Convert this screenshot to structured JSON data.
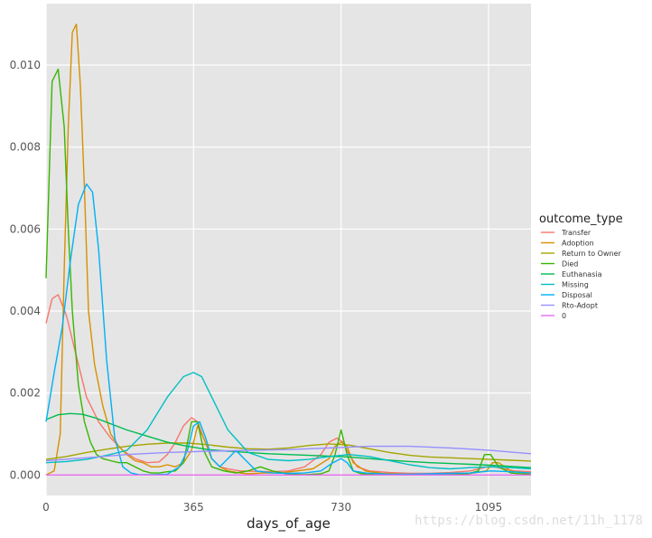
{
  "chart_data": {
    "type": "line",
    "xlabel": "days_of_age",
    "ylabel": "",
    "xlim": [
      0,
      1200
    ],
    "ylim": [
      -0.0005,
      0.0115
    ],
    "x_ticks": [
      0,
      365,
      730,
      1095
    ],
    "y_ticks": [
      0.0,
      0.002,
      0.004,
      0.006,
      0.008,
      0.01
    ],
    "y_tick_labels": [
      "0.000",
      "0.002",
      "0.004",
      "0.006",
      "0.008",
      "0.010"
    ],
    "x_tick_labels": [
      "0",
      "365",
      "730",
      "1095"
    ],
    "grid": true,
    "legend": {
      "title": "outcome_type",
      "placement": "right"
    },
    "series": [
      {
        "name": "Transfer",
        "color": "#F8766D",
        "x": [
          0,
          15,
          30,
          50,
          75,
          100,
          130,
          160,
          190,
          220,
          250,
          280,
          300,
          320,
          340,
          360,
          375,
          390,
          410,
          430,
          450,
          480,
          520,
          560,
          600,
          640,
          680,
          700,
          720,
          735,
          750,
          770,
          800,
          850,
          900,
          950,
          1000,
          1050,
          1090,
          1110,
          1130,
          1160,
          1200
        ],
        "y": [
          0.0037,
          0.0043,
          0.0044,
          0.0039,
          0.0029,
          0.0019,
          0.0013,
          0.0009,
          0.0006,
          0.0004,
          0.0003,
          0.00032,
          0.0005,
          0.0008,
          0.0012,
          0.0014,
          0.0013,
          0.0009,
          0.0004,
          0.0002,
          0.00015,
          0.0001,
          9e-05,
          8e-05,
          0.0001,
          0.0002,
          0.0005,
          0.0008,
          0.0009,
          0.0008,
          0.0005,
          0.0002,
          0.0001,
          6e-05,
          4e-05,
          4e-05,
          6e-05,
          0.0001,
          0.0002,
          0.0002,
          0.00015,
          0.0001,
          8e-05
        ]
      },
      {
        "name": "Adoption",
        "color": "#D89000",
        "x": [
          0,
          20,
          35,
          45,
          55,
          65,
          75,
          85,
          95,
          105,
          120,
          140,
          160,
          180,
          200,
          220,
          240,
          260,
          280,
          300,
          320,
          340,
          360,
          375,
          390,
          410,
          430,
          450,
          480,
          500,
          540,
          580,
          620,
          660,
          700,
          715,
          730,
          745,
          760,
          790,
          830,
          900,
          950,
          1000,
          1050,
          1090,
          1105,
          1120,
          1150,
          1200
        ],
        "y": [
          0.0,
          0.0001,
          0.001,
          0.005,
          0.0085,
          0.0108,
          0.011,
          0.0095,
          0.007,
          0.004,
          0.0027,
          0.0017,
          0.001,
          0.0007,
          0.0005,
          0.00035,
          0.0003,
          0.0002,
          0.0002,
          0.00025,
          0.0002,
          0.0003,
          0.0006,
          0.0012,
          0.0009,
          0.0004,
          0.0002,
          0.0001,
          5e-05,
          3e-05,
          5e-05,
          5e-05,
          0.0001,
          0.00015,
          0.0004,
          0.0007,
          0.0008,
          0.0007,
          0.0003,
          0.0001,
          4e-05,
          2e-05,
          2e-05,
          2e-05,
          4e-05,
          0.0001,
          0.0003,
          0.0003,
          0.0001,
          3e-05
        ]
      },
      {
        "name": "Return to Owner",
        "color": "#A3A500",
        "x": [
          0,
          50,
          100,
          150,
          200,
          250,
          300,
          350,
          400,
          450,
          500,
          550,
          600,
          650,
          700,
          750,
          800,
          850,
          900,
          950,
          1000,
          1050,
          1100,
          1150,
          1200
        ],
        "y": [
          0.00038,
          0.00045,
          0.00055,
          0.00063,
          0.0007,
          0.00075,
          0.00078,
          0.00078,
          0.00074,
          0.00068,
          0.00064,
          0.00063,
          0.00066,
          0.00072,
          0.00076,
          0.00073,
          0.00064,
          0.00055,
          0.00048,
          0.00044,
          0.00042,
          0.0004,
          0.00038,
          0.00036,
          0.00034
        ]
      },
      {
        "name": "Died",
        "color": "#39B600",
        "x": [
          0,
          15,
          30,
          45,
          55,
          65,
          80,
          95,
          110,
          125,
          140,
          160,
          180,
          200,
          220,
          240,
          260,
          280,
          300,
          320,
          340,
          360,
          375,
          390,
          410,
          440,
          470,
          500,
          530,
          560,
          600,
          640,
          680,
          700,
          715,
          730,
          745,
          760,
          780,
          820,
          880,
          950,
          1000,
          1040,
          1070,
          1085,
          1100,
          1120,
          1150,
          1200
        ],
        "y": [
          0.0048,
          0.0096,
          0.0099,
          0.0085,
          0.006,
          0.004,
          0.0022,
          0.0013,
          0.0008,
          0.0005,
          0.0004,
          0.00035,
          0.0003,
          0.0003,
          0.0002,
          0.0001,
          5e-05,
          5e-05,
          8e-05,
          0.0001,
          0.0003,
          0.0013,
          0.0013,
          0.0006,
          0.0002,
          0.0001,
          5e-05,
          0.0001,
          0.0002,
          0.0001,
          2e-05,
          1e-05,
          3e-05,
          0.0001,
          0.0005,
          0.0011,
          0.0005,
          0.0001,
          3e-05,
          1e-05,
          1e-05,
          1e-05,
          1e-05,
          2e-05,
          0.0001,
          0.0005,
          0.0005,
          0.0002,
          5e-05,
          1e-05
        ]
      },
      {
        "name": "Euthanasia",
        "color": "#00BB4E",
        "x": [
          0,
          30,
          60,
          90,
          120,
          160,
          200,
          250,
          300,
          350,
          400,
          450,
          500,
          550,
          600,
          650,
          700,
          750,
          800,
          850,
          900,
          950,
          1000,
          1050,
          1100,
          1150,
          1200
        ],
        "y": [
          0.00135,
          0.00147,
          0.0015,
          0.00148,
          0.0014,
          0.00125,
          0.0011,
          0.00095,
          0.0008,
          0.0007,
          0.00062,
          0.00058,
          0.00055,
          0.00052,
          0.0005,
          0.00048,
          0.00046,
          0.00044,
          0.0004,
          0.00036,
          0.00033,
          0.0003,
          0.00028,
          0.00026,
          0.00024,
          0.00021,
          0.00018
        ]
      },
      {
        "name": "Missing",
        "color": "#00BFC4",
        "x": [
          0,
          50,
          100,
          150,
          200,
          250,
          300,
          340,
          365,
          385,
          410,
          450,
          500,
          550,
          600,
          650,
          700,
          750,
          800,
          850,
          900,
          950,
          1000,
          1050,
          1100,
          1150,
          1200
        ],
        "y": [
          0.0003,
          0.00033,
          0.00038,
          0.00048,
          0.0006,
          0.0011,
          0.0019,
          0.0024,
          0.0025,
          0.0024,
          0.0019,
          0.0011,
          0.00055,
          0.00038,
          0.00035,
          0.00038,
          0.00045,
          0.0005,
          0.00045,
          0.00035,
          0.00025,
          0.00018,
          0.00015,
          0.00018,
          0.0002,
          0.00018,
          0.00015
        ]
      },
      {
        "name": "Disposal",
        "color": "#00B0F6",
        "x": [
          0,
          20,
          40,
          60,
          80,
          100,
          115,
          130,
          150,
          170,
          190,
          210,
          230,
          260,
          300,
          330,
          350,
          365,
          380,
          395,
          410,
          430,
          450,
          470,
          490,
          520,
          560,
          600,
          640,
          680,
          710,
          730,
          745,
          760,
          790,
          850,
          900,
          950,
          1000,
          1050,
          1100,
          1150,
          1200
        ],
        "y": [
          0.0013,
          0.0025,
          0.0036,
          0.0052,
          0.0066,
          0.0071,
          0.0069,
          0.0055,
          0.0028,
          0.0009,
          0.0002,
          5e-05,
          1e-05,
          1e-05,
          2e-05,
          0.0002,
          0.0006,
          0.0012,
          0.0013,
          0.0009,
          0.0004,
          0.0002,
          0.0004,
          0.0006,
          0.0004,
          0.0001,
          5e-05,
          4e-05,
          5e-05,
          0.0001,
          0.0003,
          0.0004,
          0.0003,
          0.0001,
          5e-05,
          2e-05,
          2e-05,
          3e-05,
          4e-05,
          5e-05,
          0.0001,
          8e-05,
          5e-05
        ]
      },
      {
        "name": "Rto-Adopt",
        "color": "#9590FF",
        "x": [
          0,
          100,
          200,
          300,
          400,
          500,
          600,
          700,
          800,
          850,
          900,
          1000,
          1100,
          1200
        ],
        "y": [
          0.00035,
          0.00042,
          0.0005,
          0.00055,
          0.00058,
          0.0006,
          0.00062,
          0.00066,
          0.0007,
          0.0007,
          0.0007,
          0.00066,
          0.0006,
          0.00052
        ]
      },
      {
        "name": "0",
        "color": "#E76BF3",
        "x": [
          0,
          1200
        ],
        "y": [
          0,
          0
        ]
      }
    ]
  },
  "watermark": "https://blog.csdn.net/11h_1178"
}
